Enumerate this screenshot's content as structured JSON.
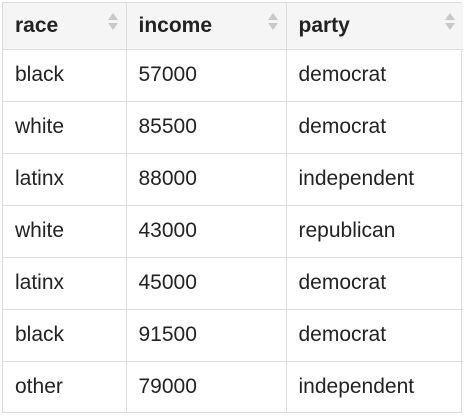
{
  "table": {
    "columns": [
      {
        "label": "race",
        "sort_icon": "sort-icon"
      },
      {
        "label": "income",
        "sort_icon": "sort-icon"
      },
      {
        "label": "party",
        "sort_icon": "sort-icon"
      }
    ],
    "rows": [
      [
        "black",
        "57000",
        "democrat"
      ],
      [
        "white",
        "85500",
        "democrat"
      ],
      [
        "latinx",
        "88000",
        "independent"
      ],
      [
        "white",
        "43000",
        "republican"
      ],
      [
        "latinx",
        "45000",
        "democrat"
      ],
      [
        "black",
        "91500",
        "democrat"
      ],
      [
        "other",
        "79000",
        "independent"
      ]
    ]
  },
  "colors": {
    "border": "#dcdcdc",
    "header_background": "#f5f5f5",
    "sort_icon": "#c8c8c8",
    "text": "#222222"
  }
}
